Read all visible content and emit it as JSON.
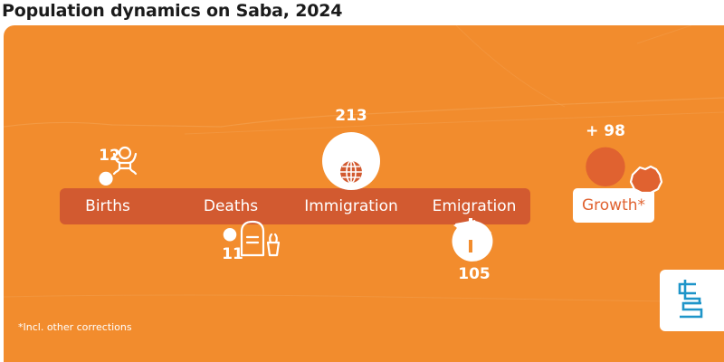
{
  "chart_data": {
    "type": "bubble-flow",
    "title": "Population dynamics on Saba, 2024",
    "categories": [
      "Births",
      "Deaths",
      "Immigration",
      "Emigration"
    ],
    "values": [
      12,
      11,
      213,
      105
    ],
    "value_labels": [
      "12",
      "11",
      "213",
      "105"
    ],
    "direction": [
      "in",
      "out",
      "in",
      "out"
    ],
    "growth": {
      "label": "Growth*",
      "value": 98,
      "value_label": "+ 98"
    },
    "footnote": "*Incl. other corrections",
    "colors": {
      "background": "#f28c2d",
      "bar": "#d25a30",
      "bubble_in": "#ffffff",
      "bubble_growth": "#e06230",
      "growth_text": "#e06230",
      "logo": "#1e95c9"
    }
  },
  "icons": {
    "births": "baby-icon",
    "deaths": "gravestone-icon",
    "immigration": "globe-icon",
    "emigration": "signpost-icon",
    "growth": "saba-island-icon",
    "logo": "cbs-logo"
  }
}
